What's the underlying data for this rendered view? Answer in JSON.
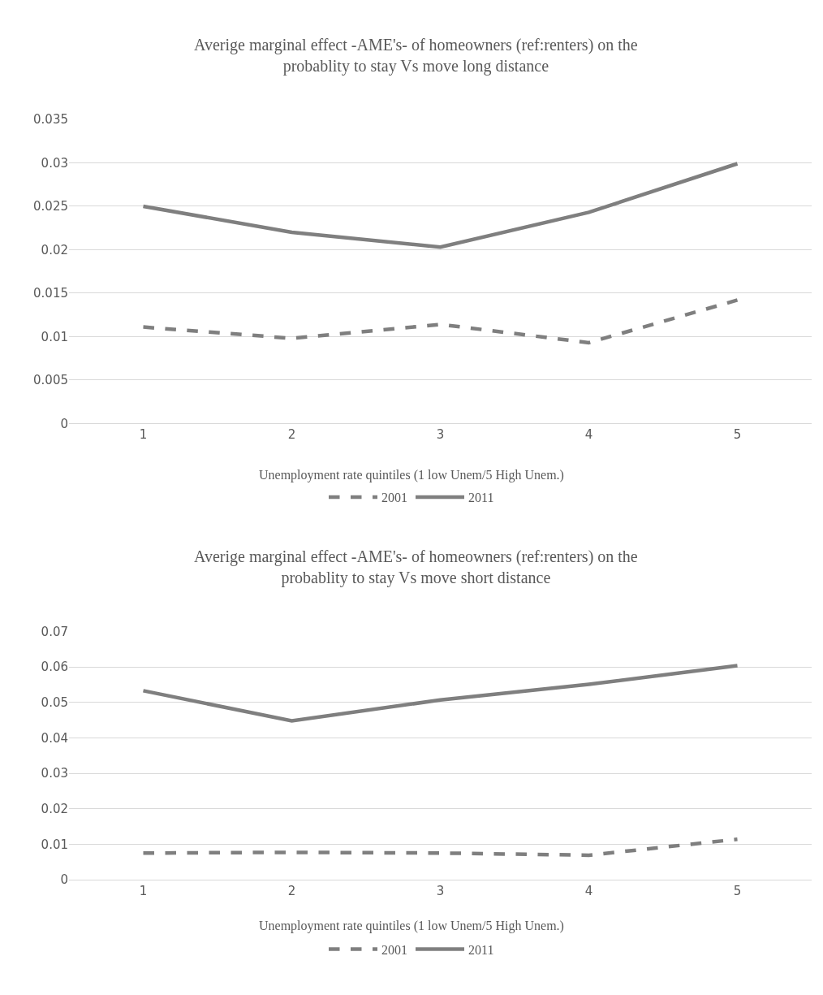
{
  "chart_data": [
    {
      "type": "line",
      "title": "Averige marginal effect -AME's- of homeowners (ref:renters) on the\nprobablity to stay Vs move long distance",
      "xlabel": "Unemployment rate quintiles (1 low Unem/5 High Unem.)",
      "categories": [
        "1",
        "2",
        "3",
        "4",
        "5"
      ],
      "series": [
        {
          "name": "2001",
          "color": "#7f7f7f",
          "line_style": "dashed",
          "values": [
            0.0111,
            0.0098,
            0.0114,
            0.0093,
            0.0142
          ]
        },
        {
          "name": "2011",
          "color": "#7f7f7f",
          "line_style": "solid",
          "values": [
            0.025,
            0.022,
            0.0203,
            0.0243,
            0.0299
          ]
        }
      ],
      "ylim": [
        0,
        0.035
      ],
      "yticks": [
        0,
        0.005,
        0.01,
        0.015,
        0.02,
        0.025,
        0.03,
        0.035
      ],
      "grid": "y",
      "legend": "bottom",
      "marker": "none"
    },
    {
      "type": "line",
      "title": "Averige marginal effect -AME's- of homeowners (ref:renters) on the\nprobablity to stay Vs move short distance",
      "xlabel": "Unemployment rate quintiles (1 low Unem/5 High Unem.)",
      "categories": [
        "1",
        "2",
        "3",
        "4",
        "5"
      ],
      "series": [
        {
          "name": "2001",
          "color": "#7f7f7f",
          "line_style": "dashed",
          "values": [
            0.0075,
            0.0077,
            0.0075,
            0.0069,
            0.0114
          ]
        },
        {
          "name": "2011",
          "color": "#7f7f7f",
          "line_style": "solid",
          "values": [
            0.0533,
            0.0448,
            0.0507,
            0.0551,
            0.0604
          ]
        }
      ],
      "ylim": [
        0,
        0.07
      ],
      "yticks": [
        0,
        0.01,
        0.02,
        0.03,
        0.04,
        0.05,
        0.06,
        0.07
      ],
      "grid": "y",
      "legend": "bottom",
      "marker": "none"
    }
  ]
}
